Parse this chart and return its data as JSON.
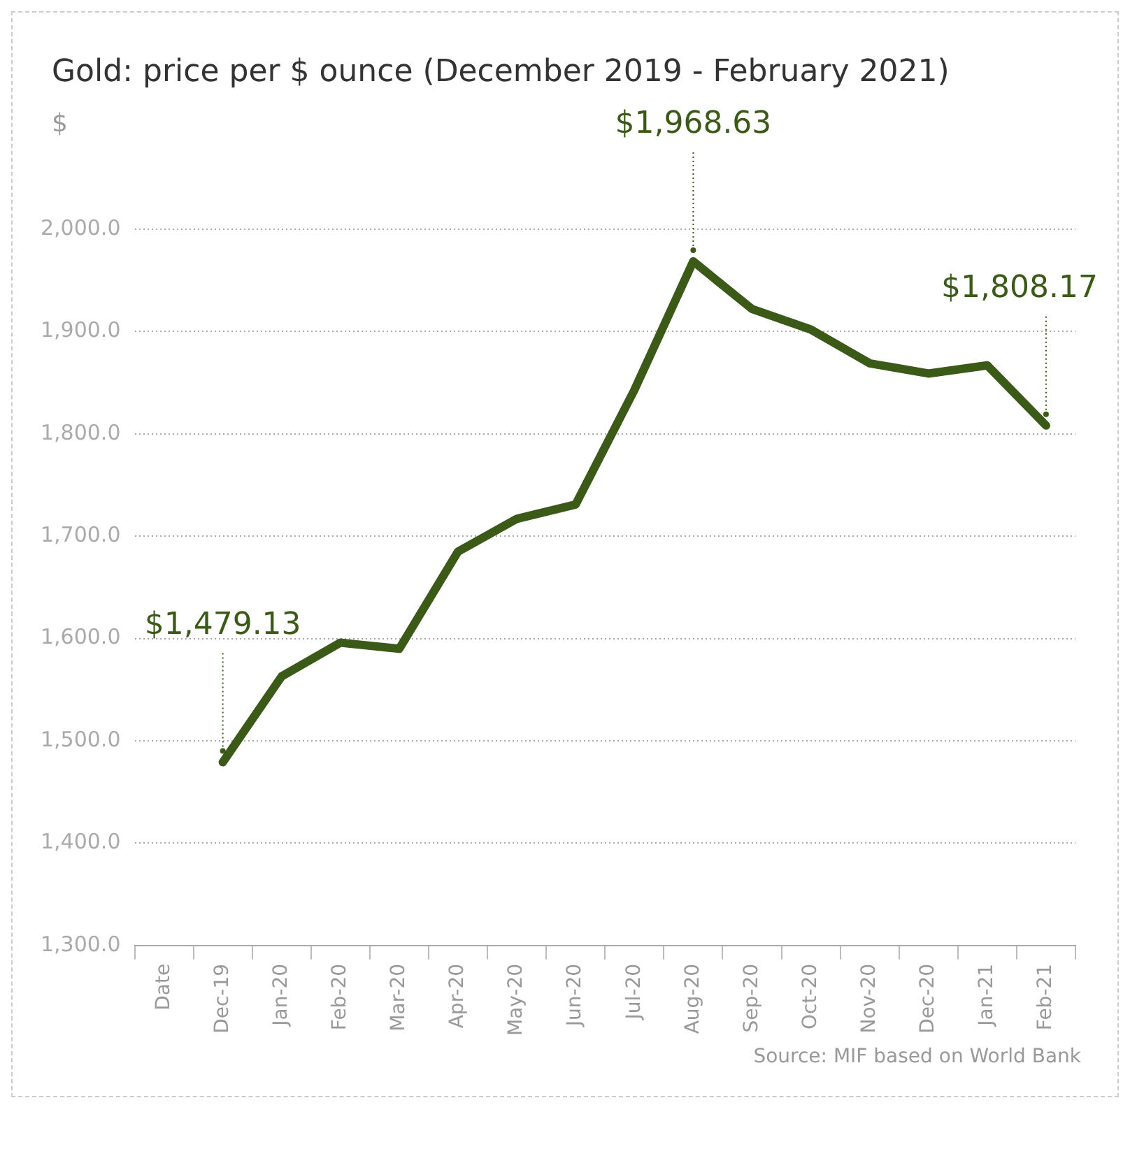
{
  "chart_data": {
    "type": "line",
    "title": "Gold: price per $ ounce (December 2019 - February 2021)",
    "ylabel": "$",
    "categories": [
      "Date",
      "Dec-19",
      "Jan-20",
      "Feb-20",
      "Mar-20",
      "Apr-20",
      "May-20",
      "Jun-20",
      "Jul-20",
      "Aug-20",
      "Sep-20",
      "Oct-20",
      "Nov-20",
      "Dec-20",
      "Jan-21",
      "Feb-21"
    ],
    "series": [
      {
        "color": "#3b5a17",
        "values": [
          null,
          1479.13,
          1563,
          1596,
          1590,
          1685,
          1717,
          1731,
          1843,
          1968.63,
          1922,
          1902,
          1869,
          1859,
          1867,
          1808.17
        ]
      }
    ],
    "ylim": [
      1300,
      2000
    ],
    "yticks": [
      {
        "value": 1300,
        "label": "1,300.0"
      },
      {
        "value": 1400,
        "label": "1,400.0"
      },
      {
        "value": 1500,
        "label": "1,500.0"
      },
      {
        "value": 1600,
        "label": "1,600.0"
      },
      {
        "value": 1700,
        "label": "1,700.0"
      },
      {
        "value": 1800,
        "label": "1,800.0"
      },
      {
        "value": 1900,
        "label": "1,900.0"
      },
      {
        "value": 2000,
        "label": "2,000.0"
      }
    ],
    "grid": "y",
    "legend": false,
    "marker": "none",
    "line_style": "solid",
    "annotations": [
      {
        "text": "$1,479.13",
        "x": "Dec-19",
        "y": 1479.13
      },
      {
        "text": "$1,968.63",
        "x": "Aug-20",
        "y": 1968.63
      },
      {
        "text": "$1,808.17",
        "x": "Feb-21",
        "y": 1808.17
      },
      "Source: MIF based on World Bank"
    ]
  }
}
